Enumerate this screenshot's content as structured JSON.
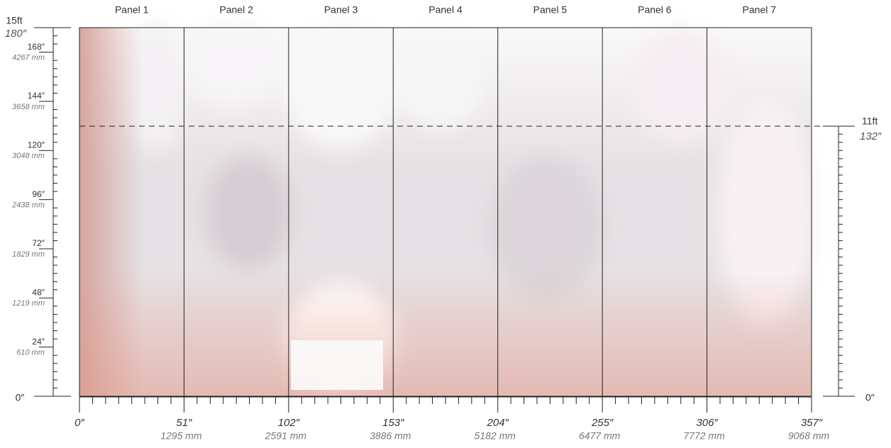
{
  "panels": [
    "Panel 1",
    "Panel 2",
    "Panel 3",
    "Panel 4",
    "Panel 5",
    "Panel 6",
    "Panel 7"
  ],
  "left_ruler": {
    "ft": "15ft",
    "in": "180″",
    "zero": "0″",
    "marks": [
      {
        "in": "168″",
        "mm": "4267 mm"
      },
      {
        "in": "144″",
        "mm": "3658 mm"
      },
      {
        "in": "120″",
        "mm": "3048 mm"
      },
      {
        "in": "96″",
        "mm": "2438 mm"
      },
      {
        "in": "72″",
        "mm": "1829 mm"
      },
      {
        "in": "48″",
        "mm": "1219 mm"
      },
      {
        "in": "24″",
        "mm": "610 mm"
      }
    ]
  },
  "right_ruler": {
    "ft": "11ft",
    "in": "132″",
    "zero": "0″"
  },
  "bottom_ruler": {
    "zero": "0″",
    "marks": [
      {
        "in": "51″",
        "mm": "1295 mm"
      },
      {
        "in": "102″",
        "mm": "2591 mm"
      },
      {
        "in": "153″",
        "mm": "3886 mm"
      },
      {
        "in": "204″",
        "mm": "5182 mm"
      },
      {
        "in": "255″",
        "mm": "6477 mm"
      },
      {
        "in": "306″",
        "mm": "7772 mm"
      },
      {
        "in": "357″",
        "mm": "9068 mm"
      }
    ]
  }
}
